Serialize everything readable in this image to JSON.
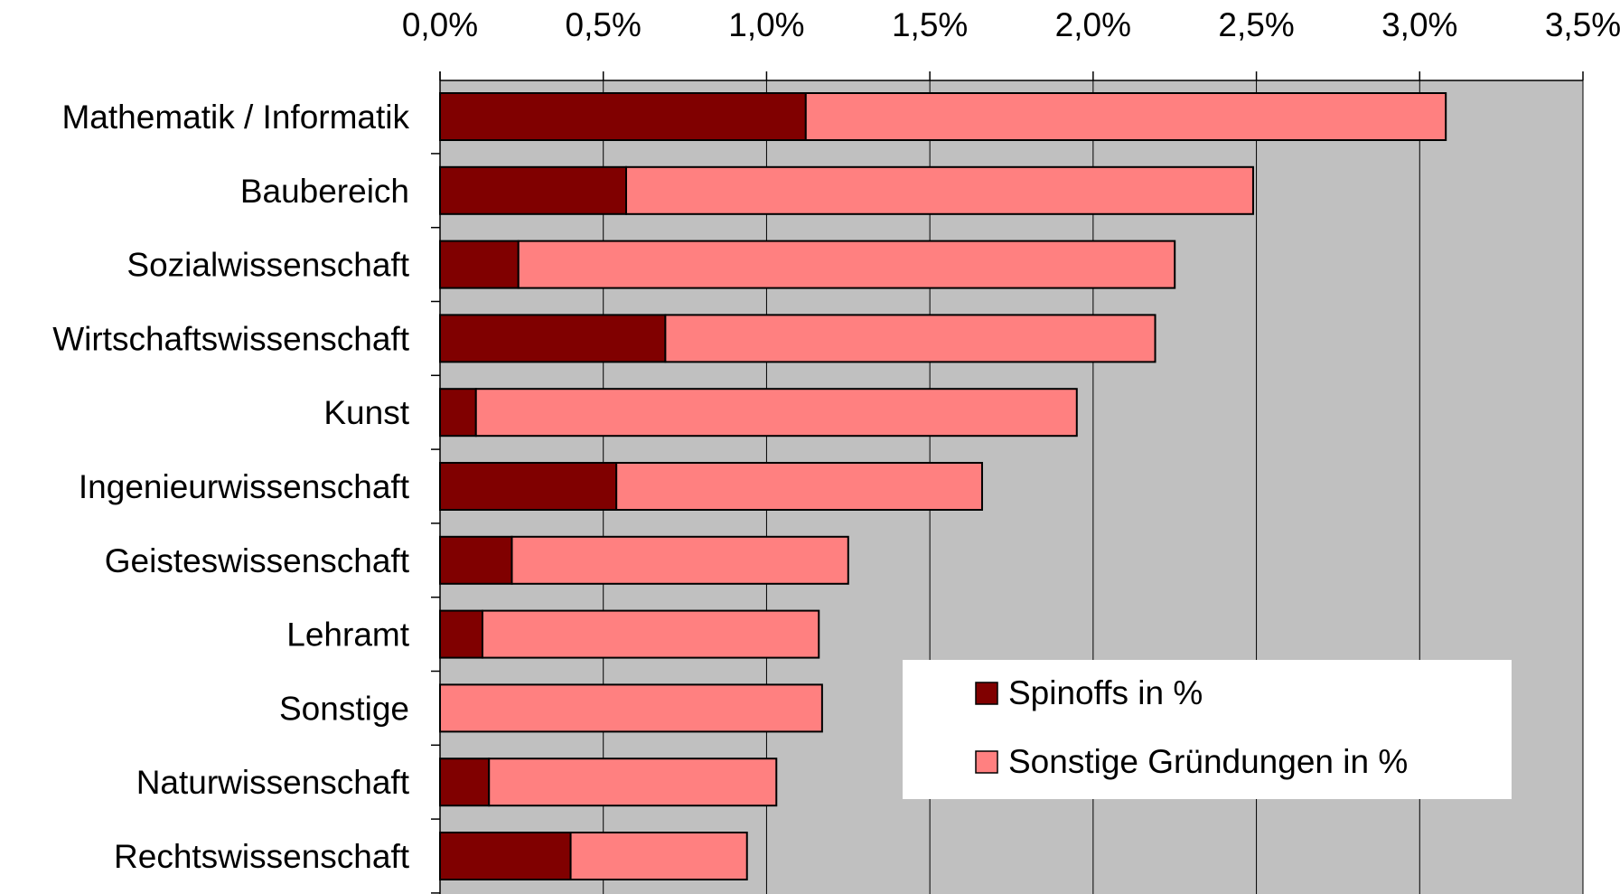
{
  "chart_data": {
    "type": "bar",
    "orientation": "horizontal",
    "stacked": true,
    "categories": [
      "Mathematik / Informatik",
      "Baubereich",
      "Sozialwissenschaft",
      "Wirtschaftswissenschaft",
      "Kunst",
      "Ingenieurwissenschaft",
      "Geisteswissenschaft",
      "Lehramt",
      "Sonstige",
      "Naturwissenschaft",
      "Rechtswissenschaft"
    ],
    "series": [
      {
        "name": "Spinoffs in %",
        "color": "#800000",
        "values": [
          1.12,
          0.57,
          0.24,
          0.69,
          0.11,
          0.54,
          0.22,
          0.13,
          0.0,
          0.15,
          0.4
        ]
      },
      {
        "name": "Sonstige Gründungen in %",
        "color": "#FF8080",
        "values": [
          1.96,
          1.92,
          2.01,
          1.5,
          1.84,
          1.12,
          1.03,
          1.03,
          1.17,
          0.88,
          0.54
        ]
      }
    ],
    "x_ticks": [
      "0,0%",
      "0,5%",
      "1,0%",
      "1,5%",
      "2,0%",
      "2,5%",
      "3,0%",
      "3,5%"
    ],
    "xlim": [
      0,
      3.5
    ],
    "x_axis_position": "top",
    "title": "",
    "xlabel": "",
    "ylabel": "",
    "grid": true,
    "plot_background": "#C0C0C0",
    "legend_position": "bottom-right"
  }
}
